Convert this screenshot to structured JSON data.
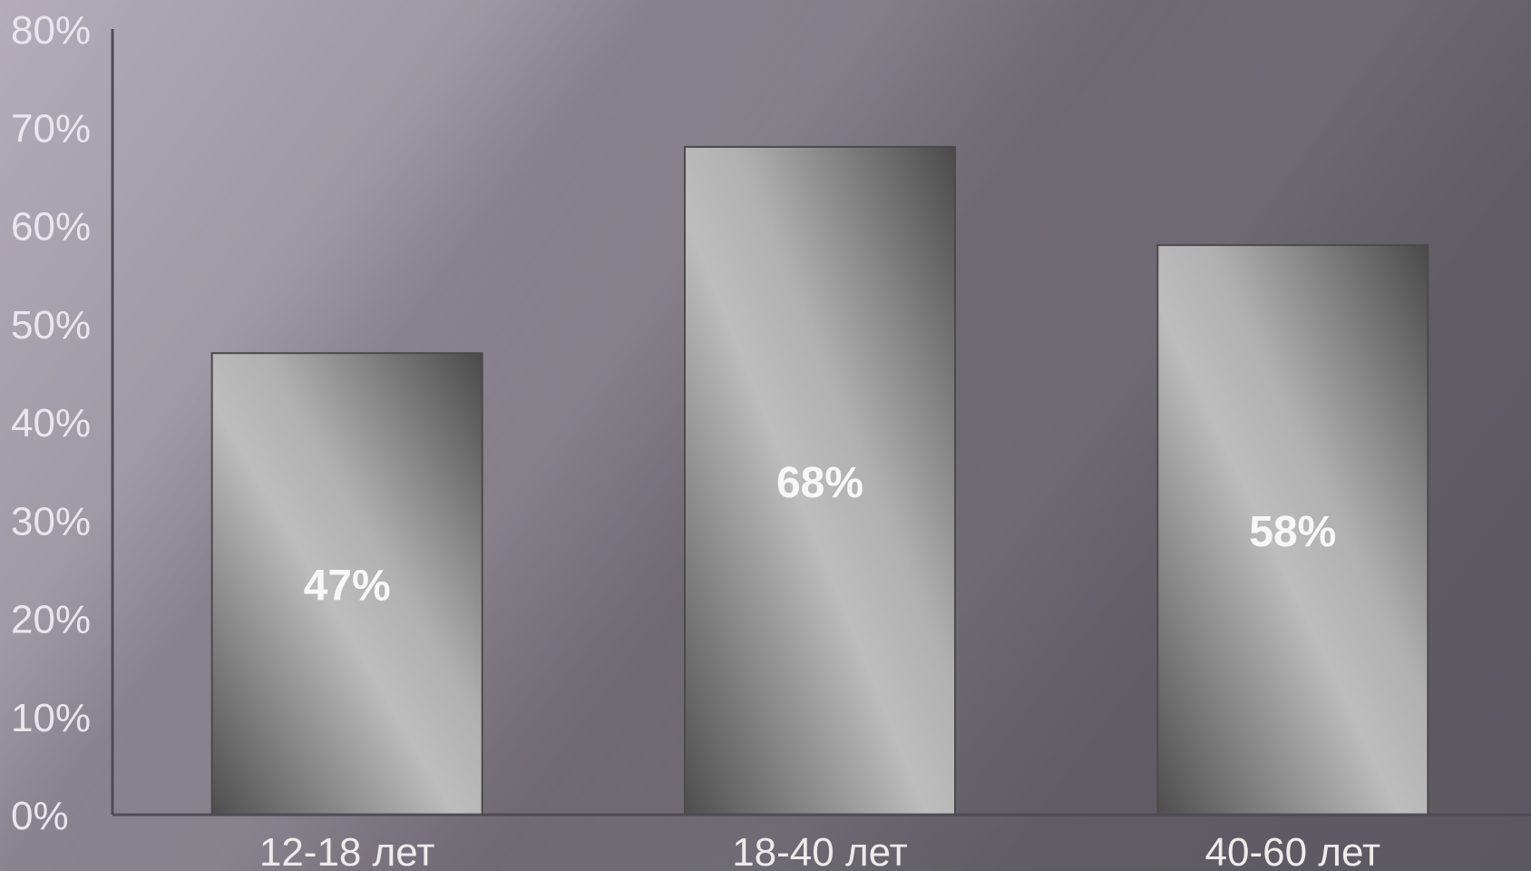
{
  "chart_data": {
    "type": "bar",
    "categories": [
      "12-18 лет",
      "18-40 лет",
      "40-60 лет"
    ],
    "values": [
      47,
      68,
      58
    ],
    "value_labels": [
      "47%",
      "68%",
      "58%"
    ],
    "ylim": [
      0,
      80
    ],
    "y_ticks": [
      0,
      10,
      20,
      30,
      40,
      50,
      60,
      70,
      80
    ],
    "y_tick_labels": [
      "0%",
      "10%",
      "20%",
      "30%",
      "40%",
      "50%",
      "60%",
      "70%",
      "80%"
    ],
    "title": "",
    "xlabel": "",
    "ylabel": "",
    "grid": false,
    "legend": "none",
    "colors": {
      "bar_light": "#bdbdbd",
      "bar_dark": "#555555",
      "bar_border": "#4a4a4a",
      "axis": "#4f4b55",
      "text": "#eeeeee"
    }
  }
}
